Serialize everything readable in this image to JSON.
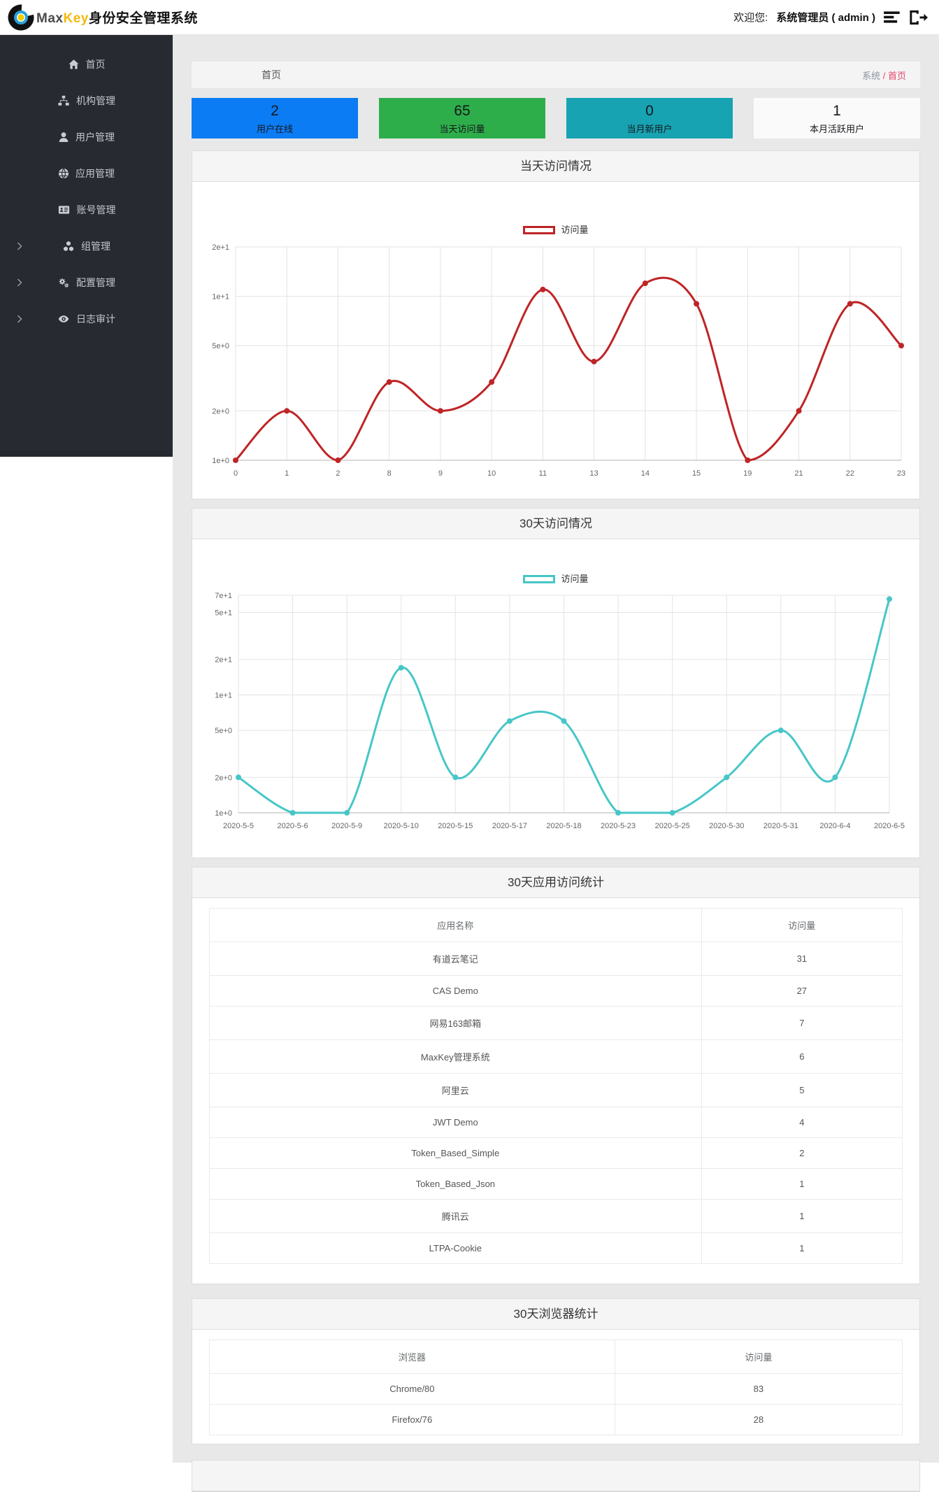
{
  "header": {
    "logo_max": "Max",
    "logo_key": "Key",
    "logo_suffix": "身份安全管理系统",
    "welcome_label": "欢迎您:",
    "user_name": "系统管理员 ( admin )"
  },
  "sidebar": {
    "items": [
      {
        "key": "home",
        "label": "首页",
        "icon": "home-icon",
        "has_children": false
      },
      {
        "key": "org",
        "label": "机构管理",
        "icon": "sitemap-icon",
        "has_children": false
      },
      {
        "key": "user",
        "label": "用户管理",
        "icon": "user-icon",
        "has_children": false
      },
      {
        "key": "app",
        "label": "应用管理",
        "icon": "globe-icon",
        "has_children": false
      },
      {
        "key": "account",
        "label": "账号管理",
        "icon": "id-card-icon",
        "has_children": false
      },
      {
        "key": "group",
        "label": "组管理",
        "icon": "cubes-icon",
        "has_children": true
      },
      {
        "key": "config",
        "label": "配置管理",
        "icon": "cogs-icon",
        "has_children": true
      },
      {
        "key": "audit",
        "label": "日志审计",
        "icon": "eye-icon",
        "has_children": true
      }
    ]
  },
  "breadcrumb": {
    "page_title": "首页",
    "root": "系统",
    "separator": " / ",
    "current": "首页"
  },
  "stats": [
    {
      "key": "online-users",
      "value": "2",
      "label": "用户在线",
      "color": "#0c7cf4"
    },
    {
      "key": "today-visits",
      "value": "65",
      "label": "当天访问量",
      "color": "#2eae4a"
    },
    {
      "key": "new-users-month",
      "value": "0",
      "label": "当月新用户",
      "color": "#17a3b2"
    },
    {
      "key": "active-users-month",
      "value": "1",
      "label": "本月活跃用户",
      "color": "#fafafa"
    }
  ],
  "chart_data": [
    {
      "type": "line",
      "title": "当天访问情况",
      "legend": "访问量",
      "color": "#bf2426",
      "scale": "log",
      "ylim": [
        1,
        20
      ],
      "y_ticks": [
        {
          "label": "2e+1",
          "value": 20
        },
        {
          "label": "1e+1",
          "value": 10
        },
        {
          "label": "5e+0",
          "value": 5
        },
        {
          "label": "2e+0",
          "value": 2
        },
        {
          "label": "1e+0",
          "value": 1
        }
      ],
      "x": [
        "0",
        "1",
        "2",
        "8",
        "9",
        "10",
        "11",
        "13",
        "14",
        "15",
        "19",
        "21",
        "22",
        "23"
      ],
      "values": [
        1,
        2,
        1,
        3,
        2,
        3,
        11,
        4,
        12,
        9,
        1,
        2,
        9,
        5
      ],
      "grid": true,
      "legend_position": "top-center"
    },
    {
      "type": "line",
      "title": "30天访问情况",
      "legend": "访问量",
      "color": "#47c6c8",
      "scale": "log",
      "ylim": [
        1,
        70
      ],
      "y_ticks": [
        {
          "label": "7e+1",
          "value": 70
        },
        {
          "label": "5e+1",
          "value": 50
        },
        {
          "label": "2e+1",
          "value": 20
        },
        {
          "label": "1e+1",
          "value": 10
        },
        {
          "label": "5e+0",
          "value": 5
        },
        {
          "label": "2e+0",
          "value": 2
        },
        {
          "label": "1e+0",
          "value": 1
        }
      ],
      "x": [
        "2020-5-5",
        "2020-5-6",
        "2020-5-9",
        "2020-5-10",
        "2020-5-15",
        "2020-5-17",
        "2020-5-18",
        "2020-5-23",
        "2020-5-25",
        "2020-5-30",
        "2020-5-31",
        "2020-6-4",
        "2020-6-5"
      ],
      "values": [
        2,
        1,
        1,
        17,
        2,
        6,
        6,
        1,
        1,
        2,
        5,
        2,
        65
      ],
      "grid": true,
      "legend_position": "top-center"
    }
  ],
  "tables": [
    {
      "title": "30天应用访问统计",
      "headers": [
        "应用名称",
        "访问量"
      ],
      "rows": [
        [
          "有道云笔记",
          "31"
        ],
        [
          "CAS Demo",
          "27"
        ],
        [
          "网易163邮箱",
          "7"
        ],
        [
          "MaxKey管理系统",
          "6"
        ],
        [
          "阿里云",
          "5"
        ],
        [
          "JWT Demo",
          "4"
        ],
        [
          "Token_Based_Simple",
          "2"
        ],
        [
          "Token_Based_Json",
          "1"
        ],
        [
          "腾讯云",
          "1"
        ],
        [
          "LTPA-Cookie",
          "1"
        ]
      ]
    },
    {
      "title": "30天浏览器统计",
      "headers": [
        "浏览器",
        "访问量"
      ],
      "rows": [
        [
          "Chrome/80",
          "83"
        ],
        [
          "Firefox/76",
          "28"
        ]
      ]
    }
  ],
  "colors": {
    "breadcrumb_accent": "#e8446d",
    "sidebar_bg": "#272a31",
    "page_bg": "#e8e8e8"
  }
}
